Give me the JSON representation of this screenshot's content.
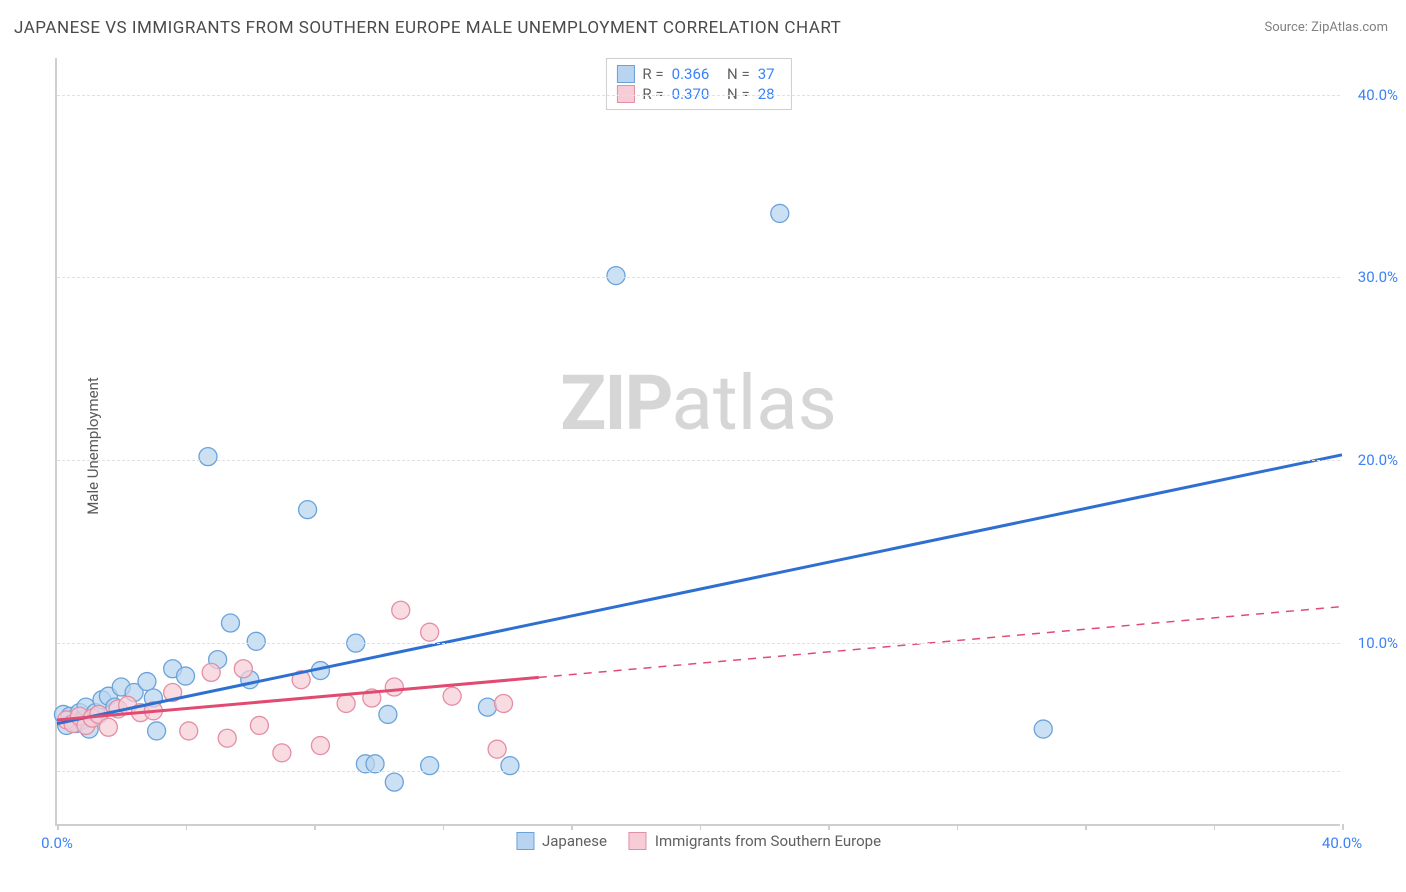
{
  "title": "JAPANESE VS IMMIGRANTS FROM SOUTHERN EUROPE MALE UNEMPLOYMENT CORRELATION CHART",
  "source": "Source: ZipAtlas.com",
  "ylabel": "Male Unemployment",
  "watermark_bold": "ZIP",
  "watermark_light": "atlas",
  "chart": {
    "type": "scatter",
    "xlim": [
      0,
      40
    ],
    "ylim": [
      0,
      42
    ],
    "xtick_positions": [
      0,
      4,
      8,
      12,
      16,
      20,
      24,
      28,
      32,
      36,
      40
    ],
    "xtick_labels": {
      "0": "0.0%",
      "40": "40.0%"
    },
    "ytick_positions": [
      10,
      20,
      30,
      40
    ],
    "ytick_labels": {
      "10": "10.0%",
      "20": "20.0%",
      "30": "30.0%",
      "40": "40.0%"
    },
    "ytick_gridlines": [
      3,
      10,
      20,
      30,
      40
    ],
    "xtick_color": "#3b82f6",
    "ytick_color": "#3b82f6",
    "background_color": "#ffffff",
    "grid_color": "#e0e0e0",
    "axis_color": "#cfcfcf",
    "marker_radius": 9,
    "marker_stroke_width": 1.3,
    "series": [
      {
        "name": "Japanese",
        "fill": "#b8d4f0",
        "stroke": "#6aa3db",
        "fill_opacity": 0.72,
        "line_color": "#2e6fd1",
        "line_width": 3,
        "r_value": "0.366",
        "n_value": "37",
        "trend": {
          "x1": 0,
          "y1": 5.6,
          "x2": 40,
          "y2": 20.3,
          "solid_until": 40
        },
        "points": [
          [
            0.2,
            6.1
          ],
          [
            0.3,
            5.5
          ],
          [
            0.4,
            6.0
          ],
          [
            0.6,
            5.6
          ],
          [
            0.7,
            6.2
          ],
          [
            0.8,
            5.8
          ],
          [
            0.9,
            6.5
          ],
          [
            1.0,
            5.3
          ],
          [
            1.2,
            6.2
          ],
          [
            1.4,
            6.9
          ],
          [
            1.6,
            7.1
          ],
          [
            1.8,
            6.5
          ],
          [
            2.0,
            7.6
          ],
          [
            2.4,
            7.3
          ],
          [
            2.8,
            7.9
          ],
          [
            3.0,
            7.0
          ],
          [
            3.1,
            5.2
          ],
          [
            3.6,
            8.6
          ],
          [
            4.0,
            8.2
          ],
          [
            4.7,
            20.2
          ],
          [
            5.0,
            9.1
          ],
          [
            5.4,
            11.1
          ],
          [
            6.0,
            8.0
          ],
          [
            6.2,
            10.1
          ],
          [
            7.8,
            17.3
          ],
          [
            8.2,
            8.5
          ],
          [
            9.3,
            10.0
          ],
          [
            9.6,
            3.4
          ],
          [
            9.9,
            3.4
          ],
          [
            10.3,
            6.1
          ],
          [
            10.5,
            2.4
          ],
          [
            11.6,
            3.3
          ],
          [
            13.4,
            6.5
          ],
          [
            14.1,
            3.3
          ],
          [
            17.4,
            30.1
          ],
          [
            22.5,
            33.5
          ],
          [
            30.7,
            5.3
          ]
        ]
      },
      {
        "name": "Immigrants from Southern Europe",
        "fill": "#f6cdd7",
        "stroke": "#e38fa4",
        "fill_opacity": 0.72,
        "line_color": "#e14b72",
        "line_width": 3,
        "r_value": "0.370",
        "n_value": "28",
        "trend": {
          "x1": 0,
          "y1": 5.8,
          "x2": 40,
          "y2": 12.0,
          "solid_until": 15
        },
        "points": [
          [
            0.3,
            5.8
          ],
          [
            0.5,
            5.6
          ],
          [
            0.7,
            6.0
          ],
          [
            0.9,
            5.5
          ],
          [
            1.1,
            5.9
          ],
          [
            1.3,
            6.1
          ],
          [
            1.6,
            5.4
          ],
          [
            1.9,
            6.4
          ],
          [
            2.2,
            6.6
          ],
          [
            2.6,
            6.2
          ],
          [
            3.0,
            6.3
          ],
          [
            3.6,
            7.3
          ],
          [
            4.1,
            5.2
          ],
          [
            4.8,
            8.4
          ],
          [
            5.3,
            4.8
          ],
          [
            5.8,
            8.6
          ],
          [
            6.3,
            5.5
          ],
          [
            7.0,
            4.0
          ],
          [
            7.6,
            8.0
          ],
          [
            8.2,
            4.4
          ],
          [
            9.0,
            6.7
          ],
          [
            9.8,
            7.0
          ],
          [
            10.5,
            7.6
          ],
          [
            10.7,
            11.8
          ],
          [
            11.6,
            10.6
          ],
          [
            12.3,
            7.1
          ],
          [
            13.7,
            4.2
          ],
          [
            13.9,
            6.7
          ]
        ]
      }
    ]
  },
  "legend_bottom": [
    {
      "label": "Japanese",
      "fill": "#b8d4f0",
      "stroke": "#6aa3db"
    },
    {
      "label": "Immigrants from Southern Europe",
      "fill": "#f6cdd7",
      "stroke": "#e38fa4"
    }
  ]
}
